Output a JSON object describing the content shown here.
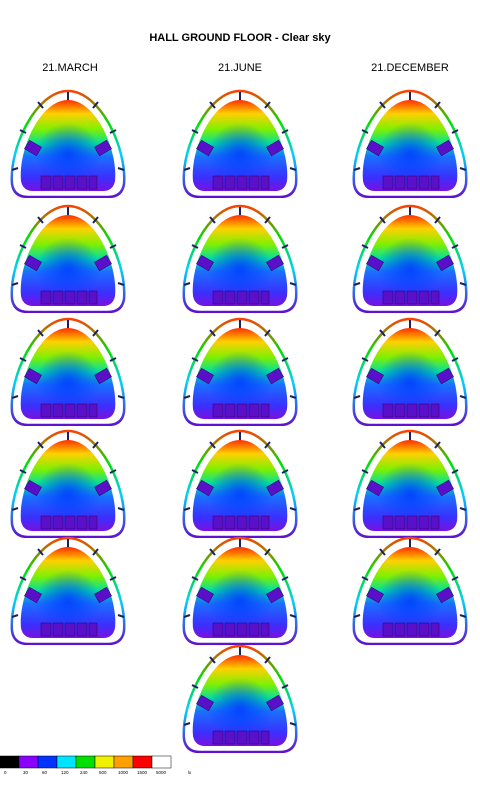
{
  "title": "HALL GROUND FLOOR - Clear sky",
  "columns": [
    "21.MARCH",
    "21.JUNE",
    "21.DECEMBER"
  ],
  "legend": {
    "labels": [
      "0",
      "30",
      "60",
      "120",
      "240",
      "500",
      "1000",
      "1500",
      "5000"
    ],
    "unit": "lx",
    "colors": [
      "#000000",
      "#8a00ff",
      "#0033ff",
      "#00e5ff",
      "#00e000",
      "#f0f000",
      "#ffa000",
      "#ff0000",
      "#ffffff"
    ]
  }
}
